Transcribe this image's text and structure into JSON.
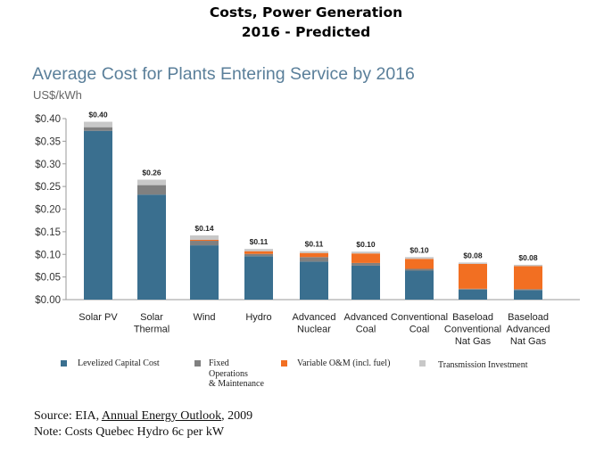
{
  "page": {
    "title_line1": "Costs, Power Generation",
    "title_line2": "2016 - Predicted"
  },
  "chart_data": {
    "type": "bar",
    "title": "Average Cost for Plants Entering Service by 2016",
    "ylabel": "US$/kWh",
    "xlabel": "",
    "stacked": true,
    "ylim": [
      0,
      0.4
    ],
    "yticks": [
      "$0.00",
      "$0.05",
      "$0.10",
      "$0.15",
      "$0.20",
      "$0.25",
      "$0.30",
      "$0.35",
      "$0.40"
    ],
    "categories": [
      [
        "Solar PV"
      ],
      [
        "Solar",
        "Thermal"
      ],
      [
        "Wind"
      ],
      [
        "Hydro"
      ],
      [
        "Advanced",
        "Nuclear"
      ],
      [
        "Advanced",
        "Coal"
      ],
      [
        "Conventional",
        "Coal"
      ],
      [
        "Baseload",
        "Conventional",
        "Nat Gas"
      ],
      [
        "Baseload",
        "Advanced",
        "Nat Gas"
      ]
    ],
    "totals": [
      "$0.40",
      "$0.26",
      "$0.14",
      "$0.11",
      "$0.11",
      "$0.10",
      "$0.10",
      "$0.08",
      "$0.08"
    ],
    "series": [
      {
        "name": "Levelized Capital Cost",
        "color": "#3a6f8f",
        "values": [
          0.373,
          0.232,
          0.12,
          0.096,
          0.084,
          0.075,
          0.064,
          0.022,
          0.021
        ]
      },
      {
        "name": "Fixed Operations & Maintenance",
        "color": "#808080",
        "values": [
          0.008,
          0.021,
          0.01,
          0.005,
          0.01,
          0.006,
          0.004,
          0.002,
          0.002
        ]
      },
      {
        "name": "Variable O&M (incl. fuel)",
        "color": "#f26f22",
        "values": [
          0.0,
          0.0,
          0.002,
          0.006,
          0.009,
          0.021,
          0.022,
          0.055,
          0.051
        ]
      },
      {
        "name": "Transmission Investment",
        "color": "#c8c8c8",
        "values": [
          0.012,
          0.012,
          0.01,
          0.005,
          0.004,
          0.004,
          0.004,
          0.003,
          0.003
        ]
      }
    ],
    "grid": false,
    "legend_position": "bottom"
  },
  "legend": {
    "levelized": "Levelized Capital Cost",
    "fixed": [
      "Fixed",
      "Operations",
      "& Maintenance"
    ],
    "variable": "Variable O&M (incl. fuel)",
    "transmission": "Transmission Investment"
  },
  "source": {
    "prefix": "Source: EIA, ",
    "link": "Annual Energy Outlook",
    "suffix": ", 2009",
    "note": "Note: Costs Quebec Hydro 6c per kW"
  }
}
